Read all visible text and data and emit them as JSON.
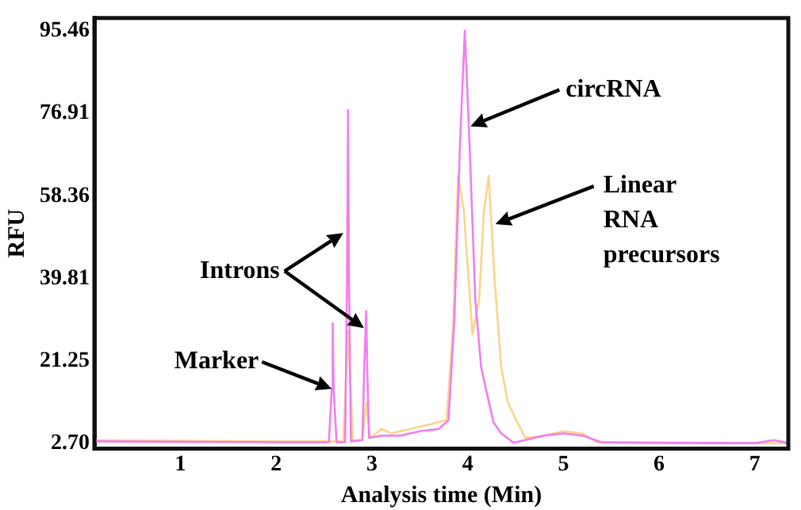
{
  "chart_data": {
    "type": "line",
    "xlabel": "Analysis time (Min)",
    "ylabel": "RFU",
    "xlim": [
      0.1,
      7.35
    ],
    "xticks": [
      1,
      2,
      3,
      4,
      5,
      6,
      7
    ],
    "ylim": [
      1.6,
      98.3
    ],
    "yticks": [
      {
        "value": 2.7,
        "label": "2.70"
      },
      21.25,
      39.81,
      58.36,
      76.91,
      95.46
    ],
    "grid": false,
    "legend": false,
    "marker": "none",
    "line_style": "solid",
    "series": [
      {
        "color": "#f07ef0",
        "x": [
          0.1,
          2.0,
          2.55,
          2.58,
          2.59,
          2.6,
          2.63,
          2.72,
          2.74,
          2.75,
          2.76,
          2.78,
          2.9,
          2.92,
          2.94,
          2.95,
          2.97,
          3.1,
          3.3,
          3.5,
          3.7,
          3.8,
          3.86,
          3.92,
          3.97,
          4.02,
          4.08,
          4.14,
          4.18,
          4.27,
          4.35,
          4.48,
          4.6,
          4.8,
          5.0,
          5.2,
          5.4,
          6.0,
          7.0,
          7.2,
          7.35
        ],
        "values": [
          3.2,
          3.0,
          3.0,
          15,
          29.7,
          15,
          3.0,
          3.0,
          40,
          77.6,
          40,
          3.2,
          3.5,
          20,
          32.5,
          20,
          4,
          4.5,
          4.5,
          5.5,
          6,
          8,
          30,
          70,
          95.5,
          70,
          35,
          20,
          16,
          7.5,
          5,
          2.9,
          3.5,
          4.5,
          5,
          4.5,
          3,
          2.9,
          2.8,
          3.5,
          2.8
        ]
      },
      {
        "color": "#fbd48a",
        "x": [
          0.1,
          2.0,
          2.7,
          2.75,
          2.8,
          2.9,
          2.94,
          2.98,
          3.1,
          3.2,
          3.4,
          3.6,
          3.78,
          3.85,
          3.9,
          3.96,
          4.05,
          4.12,
          4.17,
          4.22,
          4.28,
          4.35,
          4.42,
          4.49,
          4.6,
          4.8,
          5.0,
          5.2,
          5.35,
          5.6,
          7.35
        ],
        "values": [
          3.5,
          3.2,
          3.2,
          28,
          3.5,
          3.5,
          12,
          4,
          6,
          5,
          6,
          7,
          8,
          30,
          62.9,
          55,
          27.3,
          35,
          55,
          62.9,
          40,
          20,
          12,
          8.8,
          4,
          4.5,
          5.5,
          5,
          3,
          2.9,
          2.8
        ]
      }
    ],
    "annotations": [
      {
        "text": "Marker",
        "x": 2.58,
        "y": 15
      },
      {
        "text": "Introns",
        "x": 2.7,
        "y": 50
      },
      {
        "text": "circRNA",
        "x": 4.03,
        "y": 74
      },
      {
        "text": "Linear RNA precursors",
        "x": 4.29,
        "y": 52
      }
    ]
  }
}
